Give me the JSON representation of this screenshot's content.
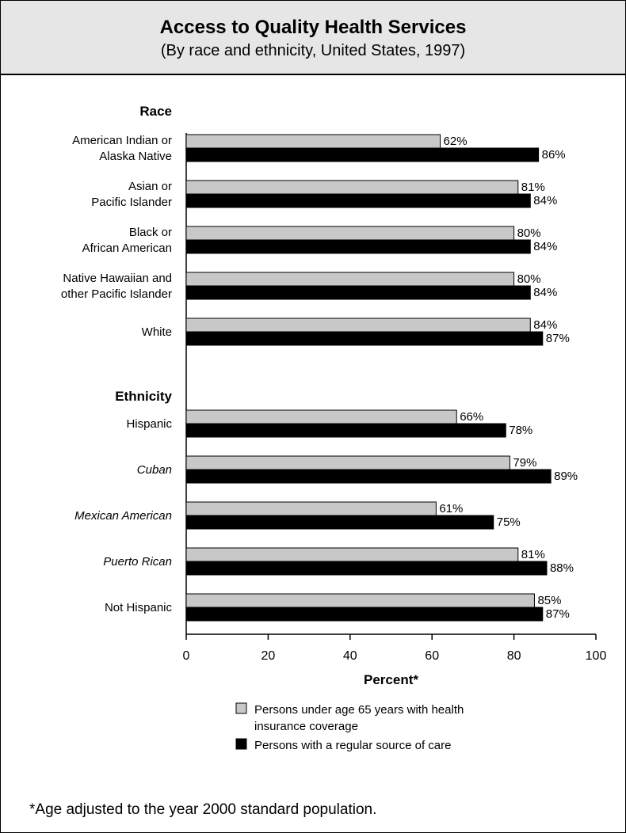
{
  "chart_data": {
    "type": "bar",
    "orientation": "horizontal",
    "title": "Access to Quality Health Services",
    "subtitle": "(By race and ethnicity, United States, 1997)",
    "xlabel": "Percent*",
    "xlim": [
      0,
      100
    ],
    "xticks": [
      0,
      20,
      40,
      60,
      80,
      100
    ],
    "grid": false,
    "legend_position": "bottom",
    "groups": [
      {
        "name": "Race",
        "categories": [
          {
            "label_lines": [
              "American Indian or",
              "Alaska Native"
            ],
            "italic": false,
            "values": [
              62,
              86
            ]
          },
          {
            "label_lines": [
              "Asian or",
              "Pacific Islander"
            ],
            "italic": false,
            "values": [
              81,
              84
            ]
          },
          {
            "label_lines": [
              "Black or",
              "African American"
            ],
            "italic": false,
            "values": [
              80,
              84
            ]
          },
          {
            "label_lines": [
              "Native Hawaiian and",
              "other Pacific Islander"
            ],
            "italic": false,
            "values": [
              80,
              84
            ]
          },
          {
            "label_lines": [
              "White"
            ],
            "italic": false,
            "values": [
              84,
              87
            ]
          }
        ]
      },
      {
        "name": "Ethnicity",
        "categories": [
          {
            "label_lines": [
              "Hispanic"
            ],
            "italic": false,
            "values": [
              66,
              78
            ]
          },
          {
            "label_lines": [
              "Cuban"
            ],
            "italic": true,
            "values": [
              79,
              89
            ]
          },
          {
            "label_lines": [
              "Mexican American"
            ],
            "italic": true,
            "values": [
              61,
              75
            ]
          },
          {
            "label_lines": [
              "Puerto Rican"
            ],
            "italic": true,
            "values": [
              81,
              88
            ]
          },
          {
            "label_lines": [
              "Not Hispanic"
            ],
            "italic": false,
            "values": [
              85,
              87
            ]
          }
        ]
      }
    ],
    "series": [
      {
        "name_lines": [
          "Persons under age 65 years with health",
          "insurance coverage"
        ],
        "color": "#c8c8c8"
      },
      {
        "name_lines": [
          "Persons with a regular source of care"
        ],
        "color": "#000000"
      }
    ],
    "footnote": "*Age adjusted to the year 2000 standard population."
  }
}
